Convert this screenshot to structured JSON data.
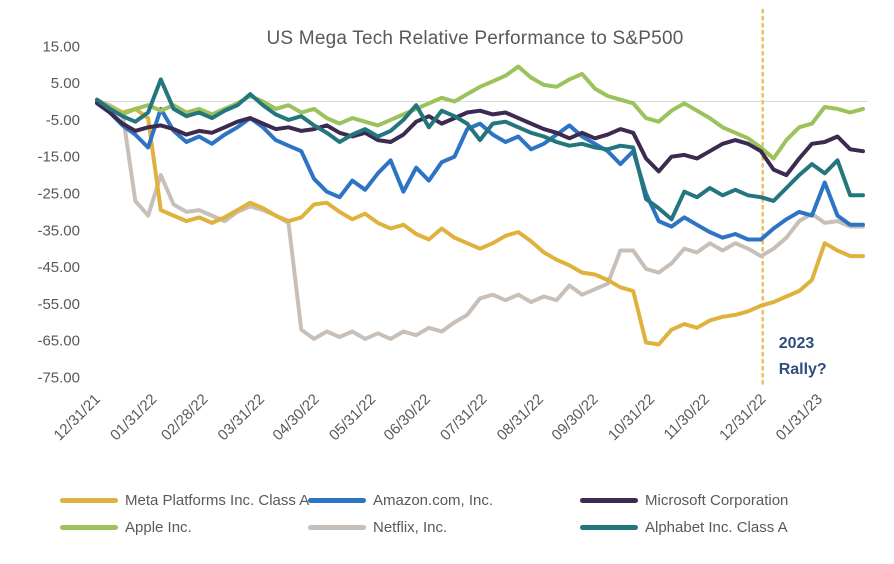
{
  "chart_data": {
    "type": "line",
    "title": "US Mega Tech Relative Performance to S&P500",
    "frequency": "weekly",
    "span_days": 420,
    "x_tick_labels": [
      "12/31/21",
      "01/31/22",
      "02/28/22",
      "03/31/22",
      "04/30/22",
      "05/31/22",
      "06/30/22",
      "07/31/22",
      "08/31/22",
      "09/30/22",
      "10/31/22",
      "11/30/22",
      "12/31/22",
      "01/31/23"
    ],
    "x_tick_days": [
      0,
      31,
      59,
      90,
      120,
      151,
      181,
      212,
      243,
      273,
      304,
      334,
      365,
      396
    ],
    "y_tick_labels": [
      "15.00",
      "5.00",
      "-5.00",
      "-15.00",
      "-25.00",
      "-35.00",
      "-45.00",
      "-55.00",
      "-65.00",
      "-75.00"
    ],
    "y_tick_values": [
      15,
      5,
      -5,
      -15,
      -25,
      -35,
      -45,
      -55,
      -65,
      -75
    ],
    "ylim": [
      -77,
      17
    ],
    "grid": "zero-line-only",
    "zero_line_color": "#d9d9d9",
    "legend_position": "bottom",
    "vline": {
      "day": 365,
      "color": "#e7c565",
      "style": "dotted"
    },
    "annotation": {
      "lines": [
        "2023",
        "Rally?"
      ],
      "color": "#2e4e7e"
    },
    "series": [
      {
        "name": "Meta Platforms Inc. Class A",
        "color": "#dfb23d",
        "values": [
          0.5,
          -1.5,
          -3,
          -2,
          -4.5,
          -29.5,
          -31,
          -32.5,
          -31.5,
          -33,
          -31.5,
          -29.5,
          -27.5,
          -29,
          -31,
          -32.5,
          -31.5,
          -28,
          -27.5,
          -30,
          -32,
          -30.5,
          -33,
          -34.5,
          -33.5,
          -36,
          -37.5,
          -34.5,
          -37,
          -38.5,
          -40,
          -38.5,
          -36.5,
          -35.5,
          -38,
          -41,
          -43,
          -44.5,
          -46.5,
          -47,
          -48.5,
          -50.5,
          -51.5,
          -65.5,
          -66,
          -62,
          -60.5,
          -61.5,
          -59.5,
          -58.5,
          -58,
          -57,
          -55.5,
          -54.5,
          -53,
          -51.5,
          -48.5,
          -38.5,
          -40.5,
          -42,
          -42
        ]
      },
      {
        "name": "Amazon.com, Inc.",
        "color": "#2e74c5",
        "values": [
          0,
          -3,
          -6.5,
          -9,
          -12.5,
          -2,
          -8,
          -11,
          -9.5,
          -11.5,
          -9,
          -7,
          -4.5,
          -7,
          -10.5,
          -12,
          -13.5,
          -21,
          -24.5,
          -26,
          -21.5,
          -24,
          -19.5,
          -16,
          -24.5,
          -18,
          -21.5,
          -16.5,
          -15,
          -7.5,
          -6,
          -9,
          -11,
          -9.5,
          -13,
          -11.5,
          -9,
          -6.5,
          -9.5,
          -11.5,
          -13.5,
          -17,
          -13.5,
          -25,
          -32.5,
          -34,
          -31.5,
          -33.5,
          -35.5,
          -37,
          -36,
          -37.5,
          -37.5,
          -34.5,
          -32,
          -30,
          -31,
          -22,
          -31,
          -33.5,
          -33.5
        ]
      },
      {
        "name": "Microsoft Corporation",
        "color": "#3d2a50",
        "values": [
          -0.5,
          -3,
          -6,
          -8,
          -7,
          -6.5,
          -7.5,
          -9,
          -8,
          -8.5,
          -7,
          -5.5,
          -4.5,
          -6,
          -7.5,
          -7,
          -8,
          -7.5,
          -6.5,
          -8.5,
          -9.5,
          -8.5,
          -10.5,
          -11,
          -9,
          -5.5,
          -4,
          -6,
          -4.5,
          -3,
          -2.5,
          -3.5,
          -3,
          -4.5,
          -6,
          -7.5,
          -8.5,
          -10,
          -8.5,
          -10,
          -9,
          -7.5,
          -8.5,
          -15.5,
          -19,
          -15,
          -14.5,
          -15.5,
          -13.5,
          -11.5,
          -10.5,
          -11.5,
          -13.5,
          -18.5,
          -20,
          -15.5,
          -11.5,
          -11,
          -9.5,
          -13,
          -13.5
        ]
      },
      {
        "name": "Apple Inc.",
        "color": "#9cc25c",
        "values": [
          0.5,
          -1.5,
          -3.5,
          -2,
          -1,
          -2.5,
          -1,
          -3,
          -2,
          -3.5,
          -2,
          -0.5,
          1.5,
          0,
          -2,
          -1,
          -3,
          -2,
          -4.5,
          -6,
          -4.5,
          -5.5,
          -6.5,
          -5,
          -3.5,
          -2,
          -0.5,
          1,
          0,
          2,
          4,
          5.5,
          7,
          9.5,
          6.5,
          4.5,
          4,
          6,
          7.5,
          3.5,
          1.5,
          0.5,
          -0.5,
          -4.5,
          -5.5,
          -2.5,
          -0.5,
          -2.5,
          -4.5,
          -7,
          -8.5,
          -10,
          -12.5,
          -15.5,
          -10.5,
          -7,
          -6,
          -1.5,
          -2,
          -3,
          -2
        ]
      },
      {
        "name": "Netflix, Inc.",
        "color": "#c8c0b8",
        "values": [
          0,
          -1,
          -3,
          -27,
          -31,
          -20,
          -28,
          -30,
          -29.5,
          -31,
          -32.5,
          -30,
          -28.5,
          -29.5,
          -31,
          -33,
          -62,
          -64.5,
          -62.5,
          -64,
          -62.5,
          -64.5,
          -63,
          -64.5,
          -62.5,
          -63.5,
          -61.5,
          -62.5,
          -60,
          -58,
          -53.5,
          -52.5,
          -54,
          -52.5,
          -54.5,
          -53,
          -54,
          -50,
          -52.5,
          -51,
          -49.5,
          -40.5,
          -40.5,
          -45.5,
          -46.5,
          -44,
          -40,
          -41,
          -38.5,
          -40.5,
          -38.5,
          -40,
          -42,
          -40,
          -37,
          -32.5,
          -30.5,
          -33,
          -32.5,
          -34,
          -34
        ]
      },
      {
        "name": "Alphabet Inc. Class A",
        "color": "#24767e",
        "values": [
          0.5,
          -2,
          -4,
          -5.5,
          -3,
          6,
          -2,
          -4,
          -3,
          -4.5,
          -2.5,
          -1,
          2,
          -1,
          -3.5,
          -5,
          -4,
          -6.5,
          -8.5,
          -11,
          -9,
          -7.5,
          -9.5,
          -8,
          -5,
          -1,
          -7,
          -2.5,
          -4,
          -6,
          -10.5,
          -6,
          -5.5,
          -7,
          -8.5,
          -9.5,
          -11,
          -12,
          -11.5,
          -12.5,
          -13,
          -12,
          -12.5,
          -26.5,
          -29,
          -32,
          -24.5,
          -26,
          -23.5,
          -25.5,
          -24,
          -25.5,
          -26,
          -27,
          -23.5,
          -20,
          -17,
          -19.5,
          -16,
          -25.5,
          -25.5
        ]
      }
    ]
  }
}
